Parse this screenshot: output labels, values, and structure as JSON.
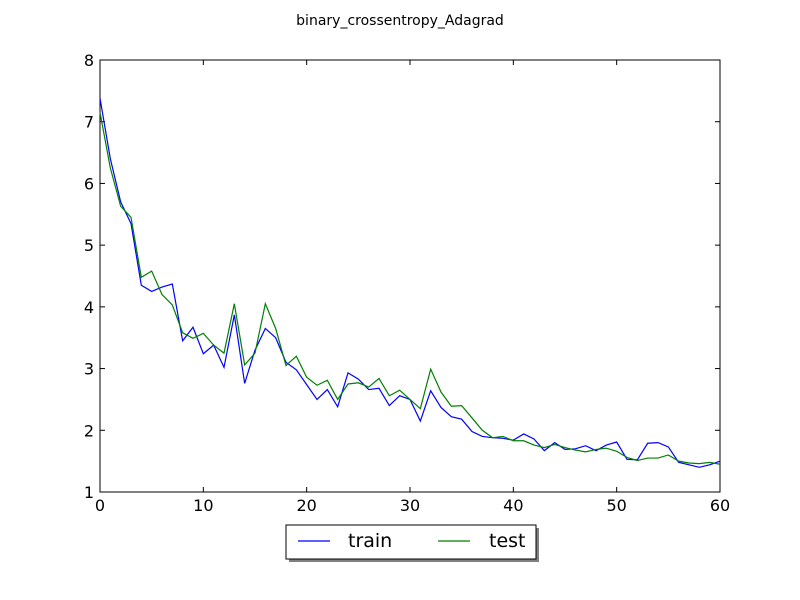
{
  "chart_data": {
    "type": "line",
    "title": "binary_crossentropy_Adagrad",
    "xlabel": "",
    "ylabel": "",
    "xlim": [
      0,
      60
    ],
    "ylim": [
      1,
      8
    ],
    "xticks": [
      0,
      10,
      20,
      30,
      40,
      50,
      60
    ],
    "yticks": [
      1,
      2,
      3,
      4,
      5,
      6,
      7,
      8
    ],
    "grid": false,
    "legend_position": "bottom-center, below plot",
    "series": [
      {
        "name": "train",
        "color": "#0000ff",
        "x": [
          0,
          1,
          2,
          3,
          4,
          5,
          6,
          7,
          8,
          9,
          10,
          11,
          12,
          13,
          14,
          15,
          16,
          17,
          18,
          19,
          20,
          21,
          22,
          23,
          24,
          25,
          26,
          27,
          28,
          29,
          30,
          31,
          32,
          33,
          34,
          35,
          36,
          37,
          38,
          39,
          40,
          41,
          42,
          43,
          44,
          45,
          46,
          47,
          48,
          49,
          50,
          51,
          52,
          53,
          54,
          55,
          56,
          57,
          58,
          59,
          60
        ],
        "values": [
          7.38,
          6.4,
          5.7,
          5.35,
          4.35,
          4.25,
          4.32,
          4.37,
          3.45,
          3.67,
          3.24,
          3.38,
          3.02,
          3.87,
          2.76,
          3.3,
          3.65,
          3.5,
          3.1,
          2.98,
          2.74,
          2.5,
          2.66,
          2.38,
          2.93,
          2.83,
          2.66,
          2.68,
          2.4,
          2.56,
          2.5,
          2.15,
          2.64,
          2.37,
          2.22,
          2.18,
          1.98,
          1.9,
          1.88,
          1.87,
          1.84,
          1.94,
          1.86,
          1.67,
          1.8,
          1.69,
          1.7,
          1.75,
          1.67,
          1.76,
          1.81,
          1.53,
          1.52,
          1.79,
          1.8,
          1.73,
          1.48,
          1.44,
          1.4,
          1.44,
          1.5
        ]
      },
      {
        "name": "test",
        "color": "#008000",
        "x": [
          0,
          1,
          2,
          3,
          4,
          5,
          6,
          7,
          8,
          9,
          10,
          11,
          12,
          13,
          14,
          15,
          16,
          17,
          18,
          19,
          20,
          21,
          22,
          23,
          24,
          25,
          26,
          27,
          28,
          29,
          30,
          31,
          32,
          33,
          34,
          35,
          36,
          37,
          38,
          39,
          40,
          41,
          42,
          43,
          44,
          45,
          46,
          47,
          48,
          49,
          50,
          51,
          52,
          53,
          54,
          55,
          56,
          57,
          58,
          59,
          60
        ],
        "values": [
          7.15,
          6.25,
          5.63,
          5.45,
          4.48,
          4.58,
          4.2,
          4.03,
          3.58,
          3.49,
          3.57,
          3.38,
          3.25,
          4.05,
          3.06,
          3.25,
          4.05,
          3.65,
          3.05,
          3.2,
          2.86,
          2.73,
          2.81,
          2.5,
          2.75,
          2.77,
          2.7,
          2.84,
          2.56,
          2.65,
          2.5,
          2.35,
          2.99,
          2.62,
          2.39,
          2.4,
          2.2,
          2.0,
          1.88,
          1.9,
          1.83,
          1.83,
          1.76,
          1.72,
          1.77,
          1.72,
          1.68,
          1.65,
          1.69,
          1.71,
          1.66,
          1.56,
          1.51,
          1.55,
          1.55,
          1.6,
          1.5,
          1.47,
          1.46,
          1.48,
          1.45
        ]
      }
    ]
  }
}
